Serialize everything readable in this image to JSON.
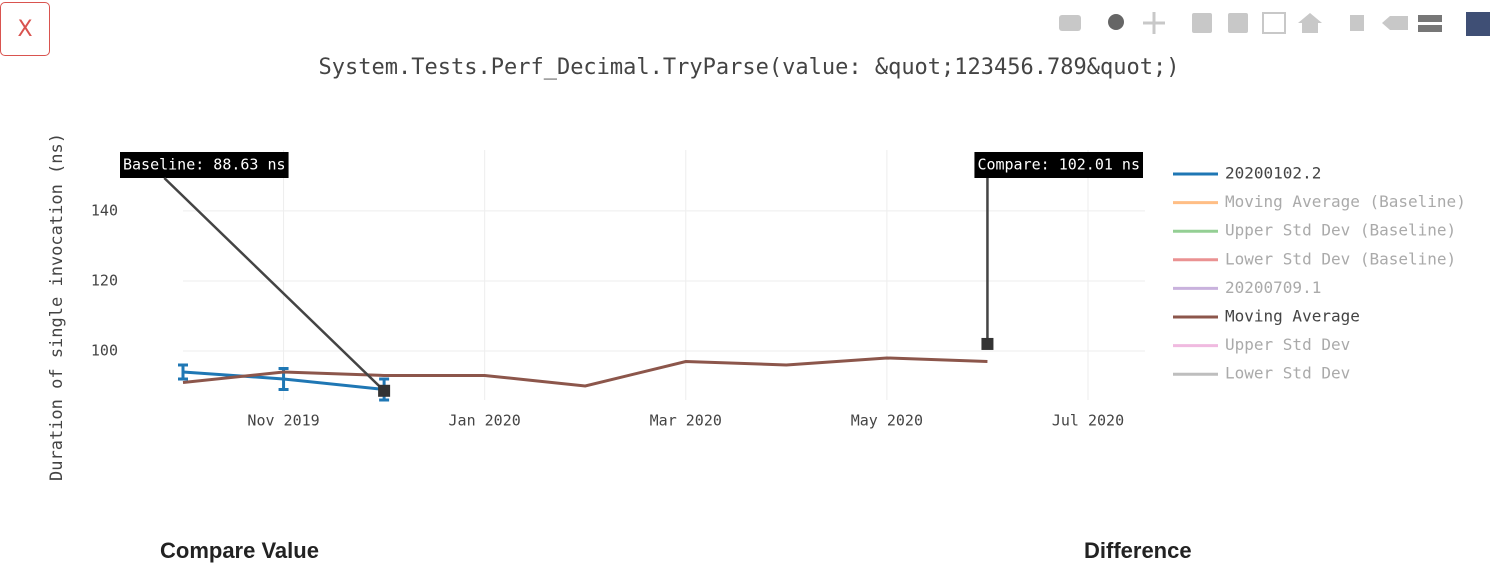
{
  "close_button": "X",
  "chart_data": {
    "type": "line",
    "title": "System.Tests.Perf_Decimal.TryParse(value: &quot;123456.789&quot;)",
    "y_label": "Duration of single invocation (ns)",
    "xlim": [
      "2019-10",
      "2020-07"
    ],
    "xticks": [
      {
        "value": "2019-11",
        "label": "Nov 2019"
      },
      {
        "value": "2020-01",
        "label": "Jan 2020"
      },
      {
        "value": "2020-03",
        "label": "Mar 2020"
      },
      {
        "value": "2020-05",
        "label": "May 2020"
      },
      {
        "value": "2020-07",
        "label": "Jul 2020"
      }
    ],
    "ylim": [
      86,
      157.4
    ],
    "yticks": [
      100,
      120,
      140
    ],
    "grid": true,
    "legend": "right",
    "series": [
      {
        "name": "20200102.2",
        "color": "#1f77b4",
        "visible": true,
        "x": [
          "2019-10",
          "2019-11",
          "2019-12"
        ],
        "values": [
          94,
          92,
          89
        ],
        "errors": [
          2,
          3,
          3
        ]
      },
      {
        "name": "Moving Average (Baseline)",
        "color": "#ff7f0e",
        "visible": false
      },
      {
        "name": "Upper Std Dev (Baseline)",
        "color": "#2ca02c",
        "visible": false
      },
      {
        "name": "Lower Std Dev (Baseline)",
        "color": "#d62728",
        "visible": false
      },
      {
        "name": "20200709.1",
        "color": "#9467bd",
        "visible": false
      },
      {
        "name": "Moving Average",
        "color": "#8c564b",
        "visible": true,
        "x": [
          "2019-10",
          "2019-11",
          "2019-12",
          "2020-01",
          "2020-02",
          "2020-03",
          "2020-04",
          "2020-05",
          "2020-06"
        ],
        "values": [
          91,
          94,
          93,
          93,
          90,
          97,
          96,
          98,
          97
        ]
      },
      {
        "name": "Upper Std Dev",
        "color": "#e377c2",
        "visible": false
      },
      {
        "name": "Lower Std Dev",
        "color": "#7f7f7f",
        "visible": false
      }
    ],
    "annotations": [
      {
        "text": "Baseline: 88.63 ns",
        "x": "2019-12",
        "value": 88.63
      },
      {
        "text": "Compare: 102.01 ns",
        "x": "2020-06",
        "value": 102.01
      }
    ]
  },
  "footer": {
    "compare_value": "Compare Value",
    "difference": "Difference"
  }
}
